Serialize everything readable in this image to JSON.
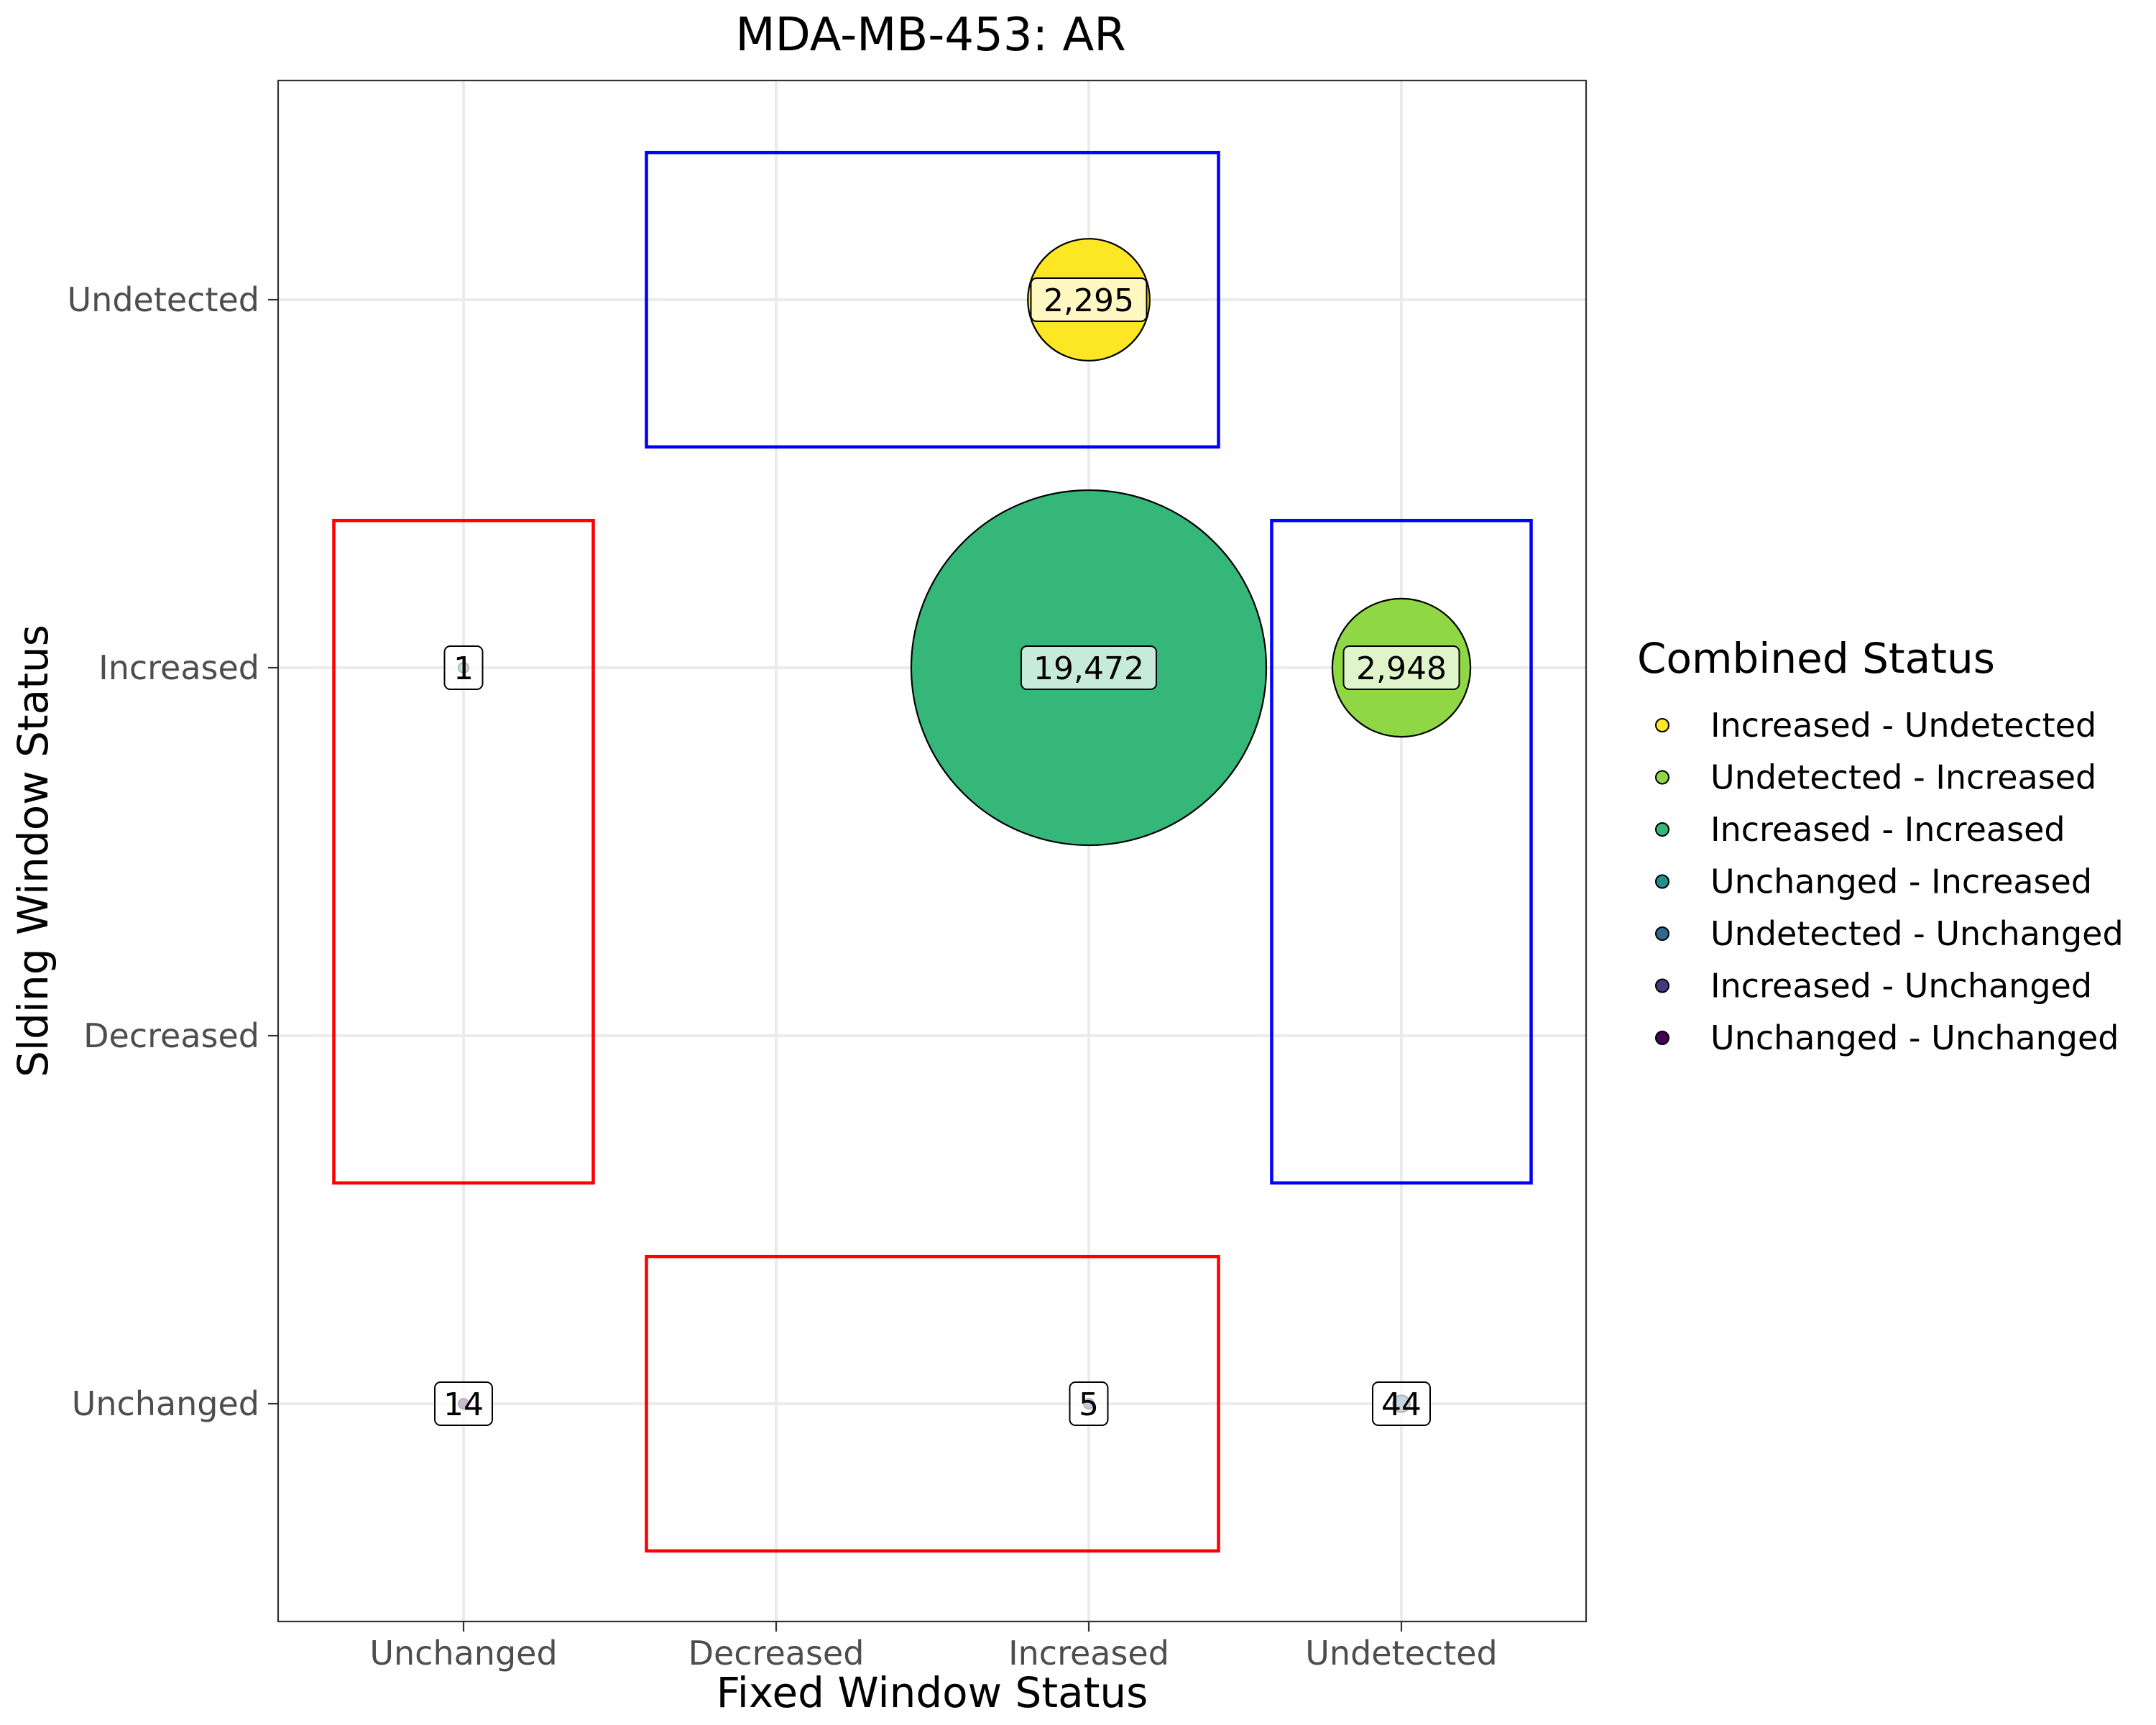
{
  "chart_data": {
    "type": "scatter",
    "title": "MDA-MB-453: AR",
    "xlabel": "Fixed Window Status",
    "ylabel": "Slding Window Status",
    "x_categories": [
      "Unchanged",
      "Decreased",
      "Increased",
      "Undetected"
    ],
    "y_categories": [
      "Unchanged",
      "Decreased",
      "Increased",
      "Undetected"
    ],
    "grid": true,
    "legend": {
      "title": "Combined Status",
      "placement": "right",
      "entries": [
        {
          "label": "Increased - Undetected",
          "color": "#FDE725"
        },
        {
          "label": "Undetected - Increased",
          "color": "#8FD744"
        },
        {
          "label": "Increased - Increased",
          "color": "#35B779"
        },
        {
          "label": "Unchanged - Increased",
          "color": "#21908C"
        },
        {
          "label": "Undetected - Unchanged",
          "color": "#31688E"
        },
        {
          "label": "Increased - Unchanged",
          "color": "#443A83"
        },
        {
          "label": "Unchanged - Unchanged",
          "color": "#440154"
        }
      ]
    },
    "points": [
      {
        "x": "Increased",
        "y": "Undetected",
        "value": 2295,
        "label": "2,295",
        "status": "Increased - Undetected"
      },
      {
        "x": "Increased",
        "y": "Increased",
        "value": 19472,
        "label": "19,472",
        "status": "Increased - Increased"
      },
      {
        "x": "Undetected",
        "y": "Increased",
        "value": 2948,
        "label": "2,948",
        "status": "Undetected - Increased"
      },
      {
        "x": "Unchanged",
        "y": "Increased",
        "value": 1,
        "label": "1",
        "status": "Unchanged - Increased"
      },
      {
        "x": "Unchanged",
        "y": "Unchanged",
        "value": 14,
        "label": "14",
        "status": "Unchanged - Unchanged"
      },
      {
        "x": "Increased",
        "y": "Unchanged",
        "value": 5,
        "label": "5",
        "status": "Increased - Unchanged"
      },
      {
        "x": "Undetected",
        "y": "Unchanged",
        "value": 44,
        "label": "44",
        "status": "Undetected - Unchanged"
      }
    ],
    "highlight_boxes": [
      {
        "color": "#0000FF",
        "x_from": "Decreased",
        "x_to": "Increased",
        "y_from": "Undetected",
        "y_to": "Undetected"
      },
      {
        "color": "#FF0000",
        "x_from": "Unchanged",
        "x_to": "Unchanged",
        "y_from": "Decreased",
        "y_to": "Increased"
      },
      {
        "color": "#0000FF",
        "x_from": "Undetected",
        "x_to": "Undetected",
        "y_from": "Decreased",
        "y_to": "Increased"
      },
      {
        "color": "#FF0000",
        "x_from": "Decreased",
        "x_to": "Increased",
        "y_from": "Unchanged",
        "y_to": "Unchanged"
      }
    ]
  }
}
